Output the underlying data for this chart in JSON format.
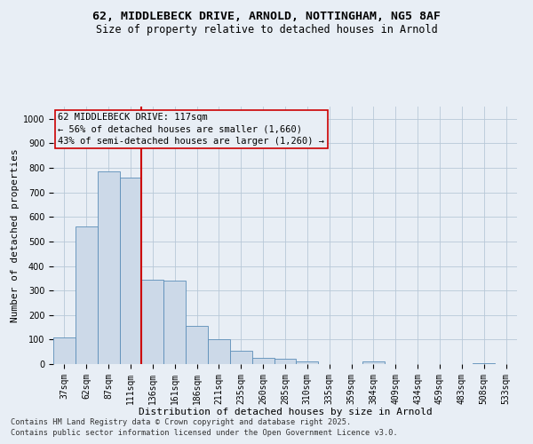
{
  "title_line1": "62, MIDDLEBECK DRIVE, ARNOLD, NOTTINGHAM, NG5 8AF",
  "title_line2": "Size of property relative to detached houses in Arnold",
  "xlabel": "Distribution of detached houses by size in Arnold",
  "ylabel": "Number of detached properties",
  "bar_color": "#ccd9e8",
  "bar_edge_color": "#5b8db8",
  "background_color": "#e8eef5",
  "grid_color": "#b8c8d8",
  "annotation_box_color": "#cc0000",
  "vline_color": "#cc0000",
  "categories": [
    "37sqm",
    "62sqm",
    "87sqm",
    "111sqm",
    "136sqm",
    "161sqm",
    "186sqm",
    "211sqm",
    "235sqm",
    "260sqm",
    "285sqm",
    "310sqm",
    "335sqm",
    "359sqm",
    "384sqm",
    "409sqm",
    "434sqm",
    "459sqm",
    "483sqm",
    "508sqm",
    "533sqm"
  ],
  "values": [
    110,
    560,
    785,
    760,
    345,
    340,
    155,
    100,
    55,
    25,
    20,
    10,
    0,
    0,
    10,
    0,
    0,
    0,
    0,
    5,
    0
  ],
  "vline_x": 3.5,
  "annotation_text": "62 MIDDLEBECK DRIVE: 117sqm\n← 56% of detached houses are smaller (1,660)\n43% of semi-detached houses are larger (1,260) →",
  "ylim": [
    0,
    1050
  ],
  "yticks": [
    0,
    100,
    200,
    300,
    400,
    500,
    600,
    700,
    800,
    900,
    1000
  ],
  "footer_line1": "Contains HM Land Registry data © Crown copyright and database right 2025.",
  "footer_line2": "Contains public sector information licensed under the Open Government Licence v3.0.",
  "title_fontsize": 9.5,
  "subtitle_fontsize": 8.5,
  "axis_label_fontsize": 8,
  "tick_fontsize": 7,
  "annotation_fontsize": 7.5,
  "footer_fontsize": 6.2
}
